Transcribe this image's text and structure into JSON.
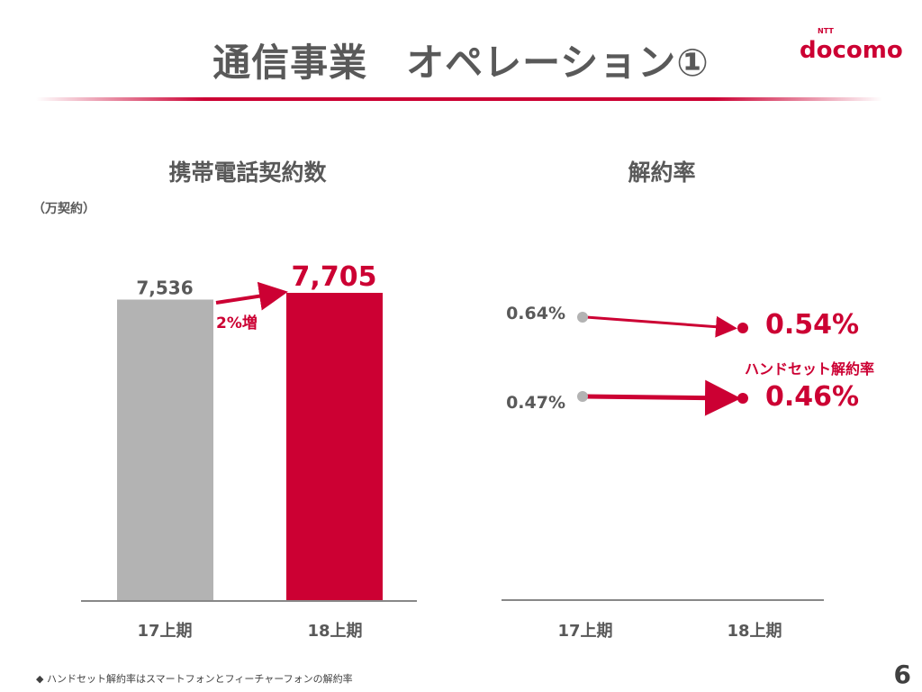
{
  "title": "通信事業　オペレーション①",
  "logo": {
    "brand": "docomo",
    "sub": "NTT"
  },
  "footnote": "◆ ハンドセット解約率はスマートフォンとフィーチャーフォンの解約率",
  "page_number": "6",
  "colors": {
    "accent": "#cc0033",
    "gray_bar": "#b3b3b3",
    "text": "#595959"
  },
  "chart_data": [
    {
      "type": "bar",
      "title": "携帯電話契約数",
      "unit_label": "（万契約）",
      "categories": [
        "17上期",
        "18上期"
      ],
      "values": [
        7536,
        7705
      ],
      "value_labels": [
        "7,536",
        "7,705"
      ],
      "colors": [
        "#b3b3b3",
        "#cc0033"
      ],
      "annotation": "2%増",
      "ylim": [
        0,
        7705
      ]
    },
    {
      "type": "line",
      "title": "解約率",
      "categories": [
        "17上期",
        "18上期"
      ],
      "series": [
        {
          "values": [
            0.64,
            0.54
          ],
          "value_labels": [
            "0.64%",
            "0.54%"
          ]
        },
        {
          "name": "ハンドセット解約率",
          "values": [
            0.47,
            0.46
          ],
          "value_labels": [
            "0.47%",
            "0.46%"
          ]
        }
      ]
    }
  ]
}
